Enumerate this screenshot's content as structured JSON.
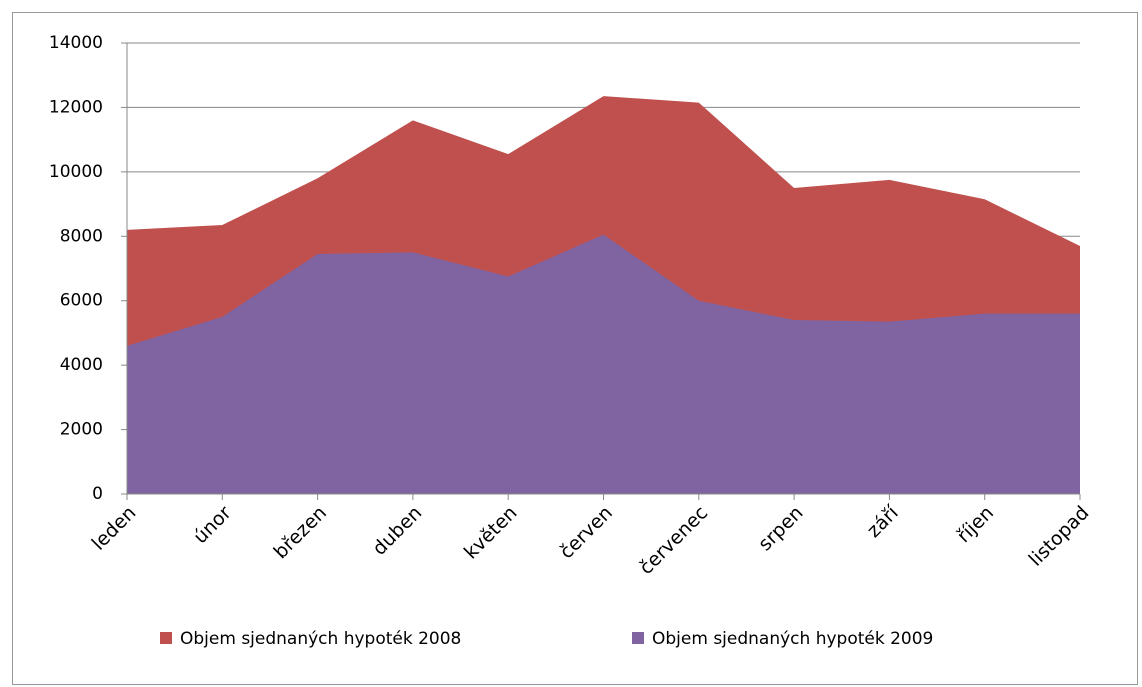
{
  "chart_data": {
    "type": "area",
    "categories": [
      "leden",
      "únor",
      "březen",
      "duben",
      "květen",
      "červen",
      "červenec",
      "srpen",
      "září",
      "říjen",
      "listopad"
    ],
    "series": [
      {
        "name": "Objem sjednaných hypoték 2008",
        "color": "#c0504d",
        "values": [
          8200,
          8350,
          9800,
          11600,
          10550,
          12350,
          12150,
          9500,
          9750,
          9150,
          7700
        ]
      },
      {
        "name": "Objem sjednaných hypoték 2009",
        "color": "#8064a2",
        "values": [
          4600,
          5500,
          7450,
          7500,
          6750,
          8050,
          6000,
          5400,
          5350,
          5600,
          5600
        ]
      }
    ],
    "ylim": [
      0,
      14000
    ],
    "yticks": [
      0,
      2000,
      4000,
      6000,
      8000,
      10000,
      12000,
      14000
    ],
    "grid": true,
    "legend": "bottom"
  }
}
